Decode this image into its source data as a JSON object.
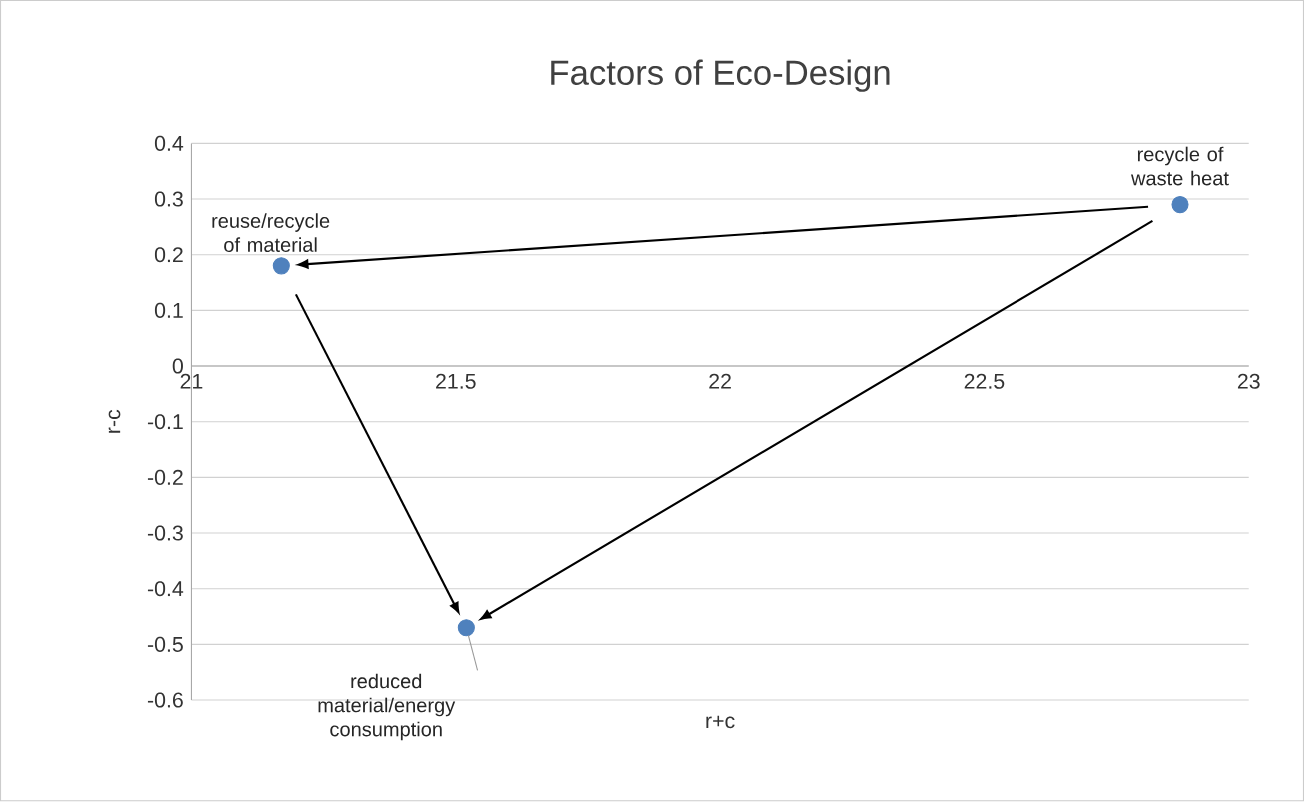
{
  "chart_data": {
    "type": "scatter",
    "title": "Factors of Eco-Design",
    "xlabel": "r+c",
    "ylabel": "r-c",
    "x": [
      21.17,
      22.87,
      21.52
    ],
    "values": [
      0.18,
      0.29,
      -0.47
    ],
    "color": "#4f81bd",
    "marker": "circle",
    "xlim": [
      21,
      23
    ],
    "xticks": [
      21,
      21.5,
      22,
      22.5,
      23
    ],
    "ylim": [
      -0.6,
      0.4
    ],
    "yticks": [
      -0.6,
      -0.5,
      -0.4,
      -0.3,
      -0.2,
      -0.1,
      0,
      0.1,
      0.2,
      0.3,
      0.4
    ],
    "grid": "y",
    "annotations": [
      {
        "text": "reuse/recycle of material",
        "x": 21.17,
        "y": 0.18
      },
      {
        "text": "recycle of waste heat",
        "x": 22.87,
        "y": 0.29
      },
      {
        "text": "reduced material/energy consumption",
        "x": 21.52,
        "y": -0.47
      }
    ]
  }
}
